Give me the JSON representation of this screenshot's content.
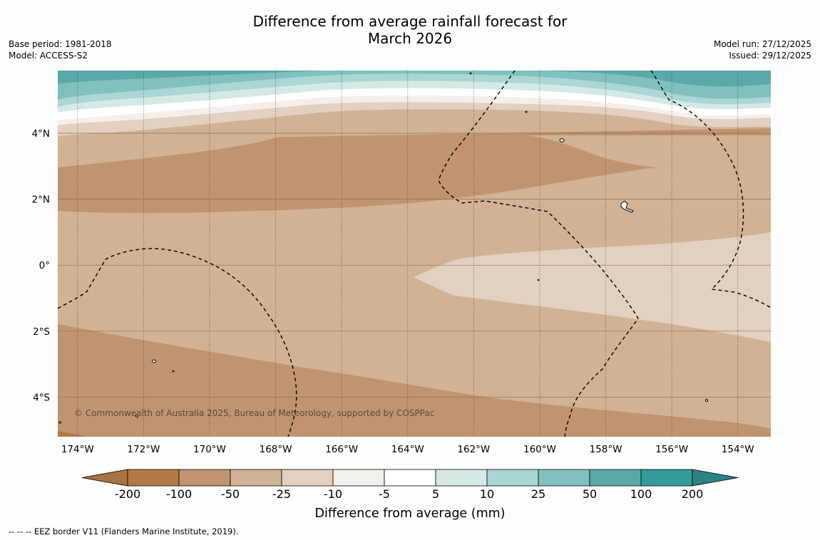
{
  "title": {
    "line1": "Difference from average rainfall forecast for",
    "line2": "March 2026"
  },
  "meta_left": {
    "base_period": "Base period: 1981-2018",
    "model": "Model: ACCESS-S2"
  },
  "meta_right": {
    "model_run": "Model run: 27/12/2025",
    "issued": "Issued: 29/12/2025"
  },
  "copyright": "© Commonwealth of Australia 2025, Bureau of Meteorology, supported by COSPPac",
  "footer": "--  --  -- EEZ border V11 (Flanders Marine Institute, 2019).",
  "chart_data": {
    "type": "map",
    "variable": "Difference from average rainfall",
    "units": "mm",
    "lon_range": [
      -174.6,
      -153.0
    ],
    "lat_range": [
      -5.2,
      5.9
    ],
    "lon_ticks": [
      {
        "value": -174,
        "label": "174°W"
      },
      {
        "value": -172,
        "label": "172°W"
      },
      {
        "value": -170,
        "label": "170°W"
      },
      {
        "value": -168,
        "label": "168°W"
      },
      {
        "value": -166,
        "label": "166°W"
      },
      {
        "value": -164,
        "label": "164°W"
      },
      {
        "value": -162,
        "label": "162°W"
      },
      {
        "value": -160,
        "label": "160°W"
      },
      {
        "value": -158,
        "label": "158°W"
      },
      {
        "value": -156,
        "label": "156°W"
      },
      {
        "value": -154,
        "label": "154°W"
      }
    ],
    "lat_ticks": [
      {
        "value": 4,
        "label": "4°N"
      },
      {
        "value": 2,
        "label": "2°N"
      },
      {
        "value": 0,
        "label": "0°"
      },
      {
        "value": -2,
        "label": "2°S"
      },
      {
        "value": -4,
        "label": "4°S"
      }
    ],
    "colorbar": {
      "title": "Difference from average (mm)",
      "ticks": [
        "-200",
        "-100",
        "-50",
        "-25",
        "-10",
        "-5",
        "5",
        "10",
        "25",
        "50",
        "100",
        "200"
      ],
      "colors": [
        "#a87340",
        "#b37a45",
        "#c09470",
        "#d2b294",
        "#e2d0c0",
        "#f4efea",
        "#ffffff",
        "#d4e9e6",
        "#aad6d3",
        "#80c0bd",
        "#5aa9a8",
        "#33999a",
        "#2b8384"
      ],
      "extend": "both"
    },
    "category_colors": {
      "dry100": "#c09470",
      "dry50": "#d2b294",
      "dry25": "#e2d0c0",
      "dry10": "#f4efea",
      "neutral": "#ffffff",
      "wet10": "#d4e9e6",
      "wet25": "#aad6d3",
      "wet50": "#80c0bd",
      "wet100": "#5aa9a8",
      "dry200": "#b37a45"
    }
  }
}
